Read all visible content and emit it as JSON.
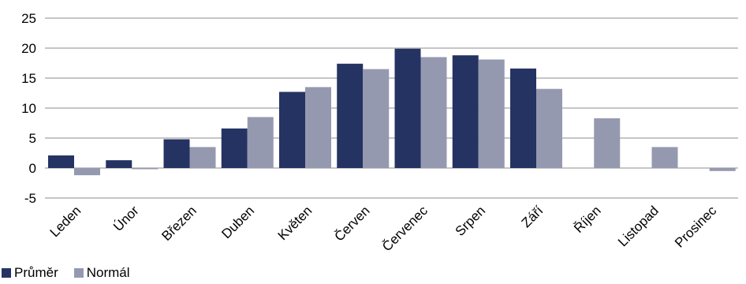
{
  "chart_data": {
    "type": "bar",
    "categories": [
      "Leden",
      "Únor",
      "Březen",
      "Duben",
      "Květen",
      "Červen",
      "Červenec",
      "Srpen",
      "Září",
      "Říjen",
      "Listopad",
      "Prosinec"
    ],
    "series": [
      {
        "name": "Průměr",
        "color": "#253363",
        "values": [
          2.1,
          1.3,
          4.8,
          6.6,
          12.7,
          17.4,
          19.9,
          18.8,
          16.6,
          null,
          null,
          null
        ]
      },
      {
        "name": "Normál",
        "color": "#9599b0",
        "values": [
          -1.2,
          -0.2,
          3.5,
          8.5,
          13.5,
          16.5,
          18.5,
          18.1,
          13.2,
          8.3,
          3.5,
          -0.5
        ]
      }
    ],
    "yticks": [
      25,
      20,
      15,
      10,
      5,
      0,
      -5
    ],
    "ylim": [
      -5,
      25
    ],
    "grid": true,
    "legend_position": "bottom-left"
  }
}
